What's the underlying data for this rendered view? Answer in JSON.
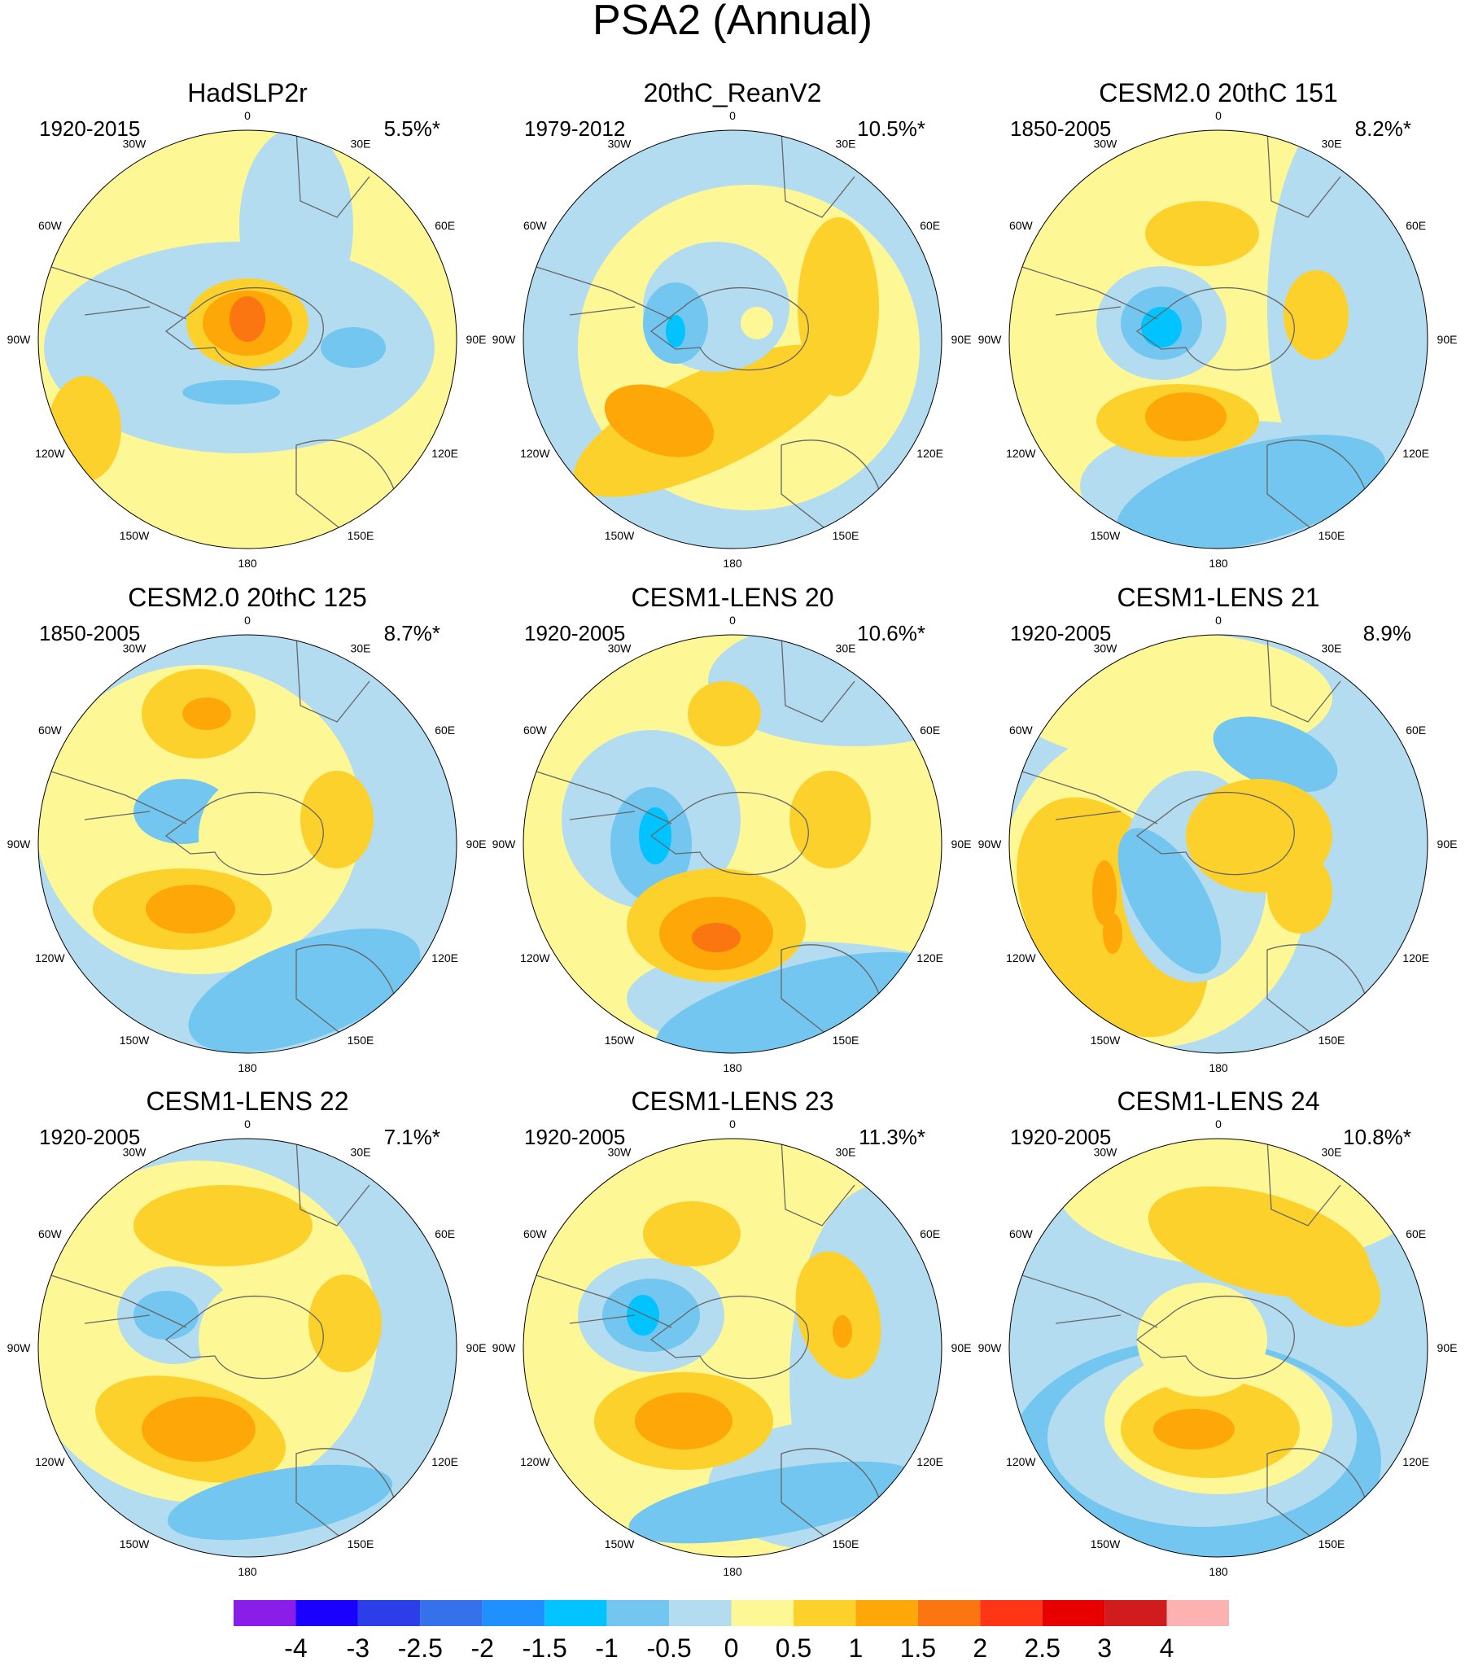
{
  "title": "PSA2 (Annual)",
  "panels": [
    {
      "title": "HadSLP2r",
      "period": "1920-2015",
      "variance": "5.5%*"
    },
    {
      "title": "20thC_ReanV2",
      "period": "1979-2012",
      "variance": "10.5%*"
    },
    {
      "title": "CESM2.0 20thC 151",
      "period": "1850-2005",
      "variance": "8.2%*"
    },
    {
      "title": "CESM2.0 20thC 125",
      "period": "1850-2005",
      "variance": "8.7%*"
    },
    {
      "title": "CESM1-LENS 20",
      "period": "1920-2005",
      "variance": "10.6%*"
    },
    {
      "title": "CESM1-LENS 21",
      "period": "1920-2005",
      "variance": "8.9%"
    },
    {
      "title": "CESM1-LENS 22",
      "period": "1920-2005",
      "variance": "7.1%*"
    },
    {
      "title": "CESM1-LENS 23",
      "period": "1920-2005",
      "variance": "11.3%*"
    },
    {
      "title": "CESM1-LENS 24",
      "period": "1920-2005",
      "variance": "10.8%*"
    }
  ],
  "longitude_labels": [
    "0",
    "30E",
    "60E",
    "90E",
    "120E",
    "150E",
    "180",
    "150W",
    "120W",
    "90W",
    "60W",
    "30W"
  ],
  "colorbar": {
    "levels": [
      -4,
      -3,
      -2.5,
      -2,
      -1.5,
      -1,
      -0.5,
      0,
      0.5,
      1,
      1.5,
      2,
      2.5,
      3,
      4
    ],
    "colors": [
      "#8a1ee8",
      "#1900ff",
      "#2b3ee8",
      "#3471ea",
      "#1e90ff",
      "#00c3ff",
      "#72c6ef",
      "#b3dcf1",
      "#fef796",
      "#fdd12c",
      "#fda708",
      "#fb7511",
      "#ff3516",
      "#e80000",
      "#d01c1c",
      "#fdb2b2"
    ]
  }
}
